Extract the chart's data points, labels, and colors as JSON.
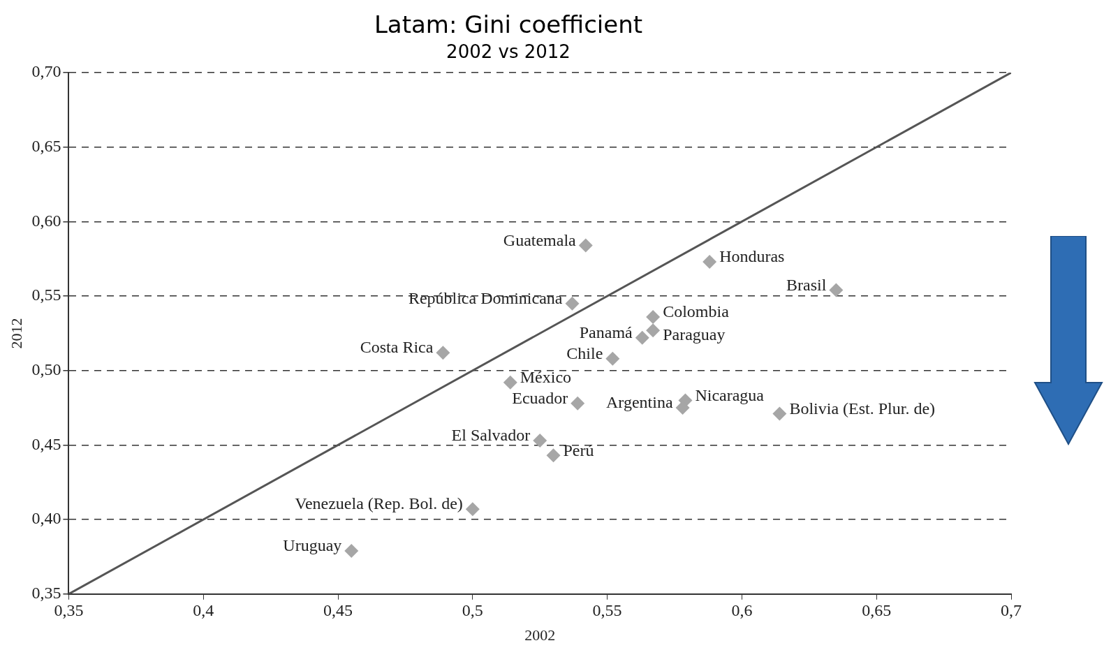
{
  "chart_data": {
    "type": "scatter",
    "title": "Latam: Gini coefficient",
    "subtitle": "2002 vs 2012",
    "xlabel": "2002",
    "ylabel": "2012",
    "xlim": [
      0.35,
      0.7
    ],
    "ylim": [
      0.35,
      0.7
    ],
    "xticks": [
      {
        "value": 0.35,
        "label": "0,35"
      },
      {
        "value": 0.4,
        "label": "0,4"
      },
      {
        "value": 0.45,
        "label": "0,45"
      },
      {
        "value": 0.5,
        "label": "0,5"
      },
      {
        "value": 0.55,
        "label": "0,55"
      },
      {
        "value": 0.6,
        "label": "0,6"
      },
      {
        "value": 0.65,
        "label": "0,65"
      },
      {
        "value": 0.7,
        "label": "0,7"
      }
    ],
    "yticks": [
      {
        "value": 0.35,
        "label": "0,35"
      },
      {
        "value": 0.4,
        "label": "0,40"
      },
      {
        "value": 0.45,
        "label": "0,45"
      },
      {
        "value": 0.5,
        "label": "0,50"
      },
      {
        "value": 0.55,
        "label": "0,55"
      },
      {
        "value": 0.6,
        "label": "0,60"
      },
      {
        "value": 0.65,
        "label": "0,65"
      },
      {
        "value": 0.7,
        "label": "0,70"
      }
    ],
    "grid": "y",
    "legend": false,
    "series": [
      {
        "marker": "diamond",
        "color": "#a6a6a6",
        "x": [
          0.542,
          0.588,
          0.635,
          0.537,
          0.567,
          0.567,
          0.563,
          0.489,
          0.552,
          0.514,
          0.539,
          0.579,
          0.578,
          0.614,
          0.525,
          0.53,
          0.5,
          0.455
        ],
        "values": [
          0.584,
          0.573,
          0.554,
          0.545,
          0.536,
          0.527,
          0.522,
          0.512,
          0.508,
          0.492,
          0.478,
          0.48,
          0.475,
          0.471,
          0.453,
          0.443,
          0.407,
          0.379
        ]
      },
      {
        "type": "line",
        "marker": "none",
        "color": "#555555",
        "x": [
          0.35,
          0.7
        ],
        "values": [
          0.35,
          0.7
        ]
      }
    ],
    "annotations": [
      {
        "text": "Guatemala",
        "x": 0.542,
        "y": 0.584
      },
      {
        "text": "Honduras",
        "x": 0.588,
        "y": 0.573
      },
      {
        "text": "Brasil",
        "x": 0.635,
        "y": 0.554
      },
      {
        "text": "República Dominicana",
        "x": 0.537,
        "y": 0.545
      },
      {
        "text": "Colombia",
        "x": 0.567,
        "y": 0.536
      },
      {
        "text": "Paraguay",
        "x": 0.567,
        "y": 0.527
      },
      {
        "text": "Panamá",
        "x": 0.563,
        "y": 0.522
      },
      {
        "text": "Costa Rica",
        "x": 0.489,
        "y": 0.512
      },
      {
        "text": "Chile",
        "x": 0.552,
        "y": 0.508
      },
      {
        "text": "México",
        "x": 0.514,
        "y": 0.492
      },
      {
        "text": "Ecuador",
        "x": 0.539,
        "y": 0.478
      },
      {
        "text": "Nicaragua",
        "x": 0.579,
        "y": 0.48
      },
      {
        "text": "Argentina",
        "x": 0.578,
        "y": 0.475
      },
      {
        "text": "Bolivia (Est. Plur. de)",
        "x": 0.614,
        "y": 0.471
      },
      {
        "text": "El Salvador",
        "x": 0.525,
        "y": 0.453
      },
      {
        "text": "Perú",
        "x": 0.53,
        "y": 0.443
      },
      {
        "text": "Venezuela (Rep. Bol. de)",
        "x": 0.5,
        "y": 0.407
      },
      {
        "text": "Uruguay",
        "x": 0.455,
        "y": 0.379
      }
    ]
  }
}
